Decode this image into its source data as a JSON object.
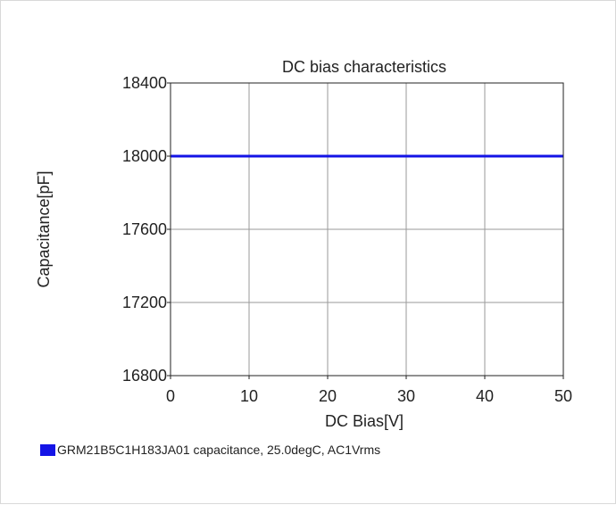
{
  "chart_data": {
    "type": "line",
    "title": "DC bias characteristics",
    "xlabel": "DC Bias[V]",
    "ylabel": "Capacitance[pF]",
    "xlim": [
      0,
      50
    ],
    "ylim": [
      16800,
      18400
    ],
    "xticks": [
      0,
      10,
      20,
      30,
      40,
      50
    ],
    "yticks": [
      16800,
      17200,
      17600,
      18000,
      18400
    ],
    "grid": true,
    "legend_placement": "bottom-left",
    "series": [
      {
        "name": "GRM21B5C1H183JA01 capacitance, 25.0degC, AC1Vrms",
        "color": "#1414e6",
        "x": [
          0,
          5,
          10,
          15,
          20,
          25,
          30,
          35,
          40,
          45,
          50
        ],
        "values": [
          18000,
          18000,
          18000,
          18000,
          18000,
          18000,
          18000,
          18000,
          18000,
          18000,
          18000
        ]
      }
    ]
  }
}
